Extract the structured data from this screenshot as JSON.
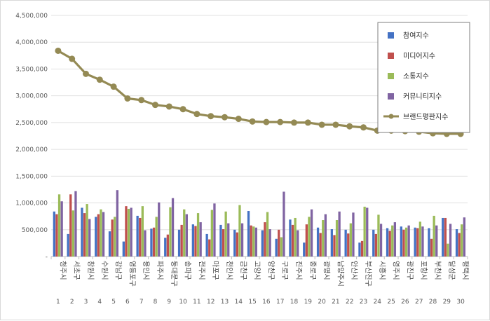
{
  "chart_data": {
    "type": "bar",
    "categories": [
      "청주시",
      "서초구",
      "창원시",
      "수원시",
      "강남구",
      "영등포구",
      "용인시",
      "파주시",
      "동대문구",
      "송파구",
      "전주시",
      "마포구",
      "천안시",
      "금천구",
      "고양시",
      "양천구",
      "구로구",
      "진주시",
      "종로구",
      "광명시",
      "남양주시",
      "안산시",
      "부산진구",
      "시흥시",
      "영주시",
      "광진구",
      "포항시",
      "부천시",
      "달성군",
      "평택시"
    ],
    "ranks": [
      "1",
      "2",
      "3",
      "4",
      "5",
      "6",
      "7",
      "8",
      "9",
      "10",
      "11",
      "12",
      "13",
      "14",
      "15",
      "16",
      "17",
      "18",
      "19",
      "20",
      "21",
      "22",
      "23",
      "24",
      "25",
      "26",
      "27",
      "28",
      "29",
      "30"
    ],
    "ylim": [
      0,
      4500000
    ],
    "yticks": [
      "-",
      "500,000",
      "1,000,000",
      "1,500,000",
      "2,000,000",
      "2,500,000",
      "3,000,000",
      "3,500,000",
      "4,000,000",
      "4,500,000"
    ],
    "legend_position": "top-right",
    "series": [
      {
        "name": "참여지수",
        "type": "bar",
        "color": "#4472c4",
        "values": [
          840000,
          420000,
          910000,
          740000,
          470000,
          280000,
          760000,
          520000,
          350000,
          500000,
          600000,
          420000,
          590000,
          500000,
          850000,
          490000,
          330000,
          690000,
          260000,
          540000,
          510000,
          500000,
          260000,
          500000,
          530000,
          560000,
          540000,
          530000,
          720000,
          510000
        ]
      },
      {
        "name": "미디어지수",
        "type": "bar",
        "color": "#c0504d",
        "values": [
          790000,
          1160000,
          810000,
          790000,
          690000,
          940000,
          720000,
          540000,
          410000,
          590000,
          570000,
          320000,
          510000,
          450000,
          580000,
          640000,
          500000,
          590000,
          600000,
          440000,
          400000,
          430000,
          290000,
          420000,
          480000,
          500000,
          530000,
          330000,
          720000,
          440000
        ]
      },
      {
        "name": "소통지수",
        "type": "bar",
        "color": "#9bbb59",
        "values": [
          1160000,
          860000,
          980000,
          880000,
          740000,
          890000,
          940000,
          740000,
          920000,
          880000,
          810000,
          870000,
          840000,
          960000,
          560000,
          830000,
          360000,
          720000,
          740000,
          680000,
          680000,
          620000,
          930000,
          780000,
          580000,
          540000,
          650000,
          760000,
          240000,
          600000
        ]
      },
      {
        "name": "커뮤니티지수",
        "type": "bar",
        "color": "#8064a2",
        "values": [
          1030000,
          1220000,
          700000,
          830000,
          1240000,
          910000,
          490000,
          1010000,
          1090000,
          790000,
          640000,
          990000,
          620000,
          620000,
          540000,
          510000,
          1210000,
          490000,
          880000,
          790000,
          840000,
          820000,
          910000,
          610000,
          640000,
          580000,
          560000,
          580000,
          610000,
          730000
        ]
      },
      {
        "name": "브랜드평판지수",
        "type": "line",
        "color": "#948a54",
        "values": [
          3840000,
          3690000,
          3410000,
          3300000,
          3170000,
          2950000,
          2920000,
          2830000,
          2800000,
          2750000,
          2660000,
          2620000,
          2600000,
          2570000,
          2520000,
          2510000,
          2510000,
          2500000,
          2500000,
          2460000,
          2460000,
          2430000,
          2410000,
          2350000,
          2350000,
          2340000,
          2330000,
          2300000,
          2290000,
          2290000
        ]
      }
    ]
  }
}
